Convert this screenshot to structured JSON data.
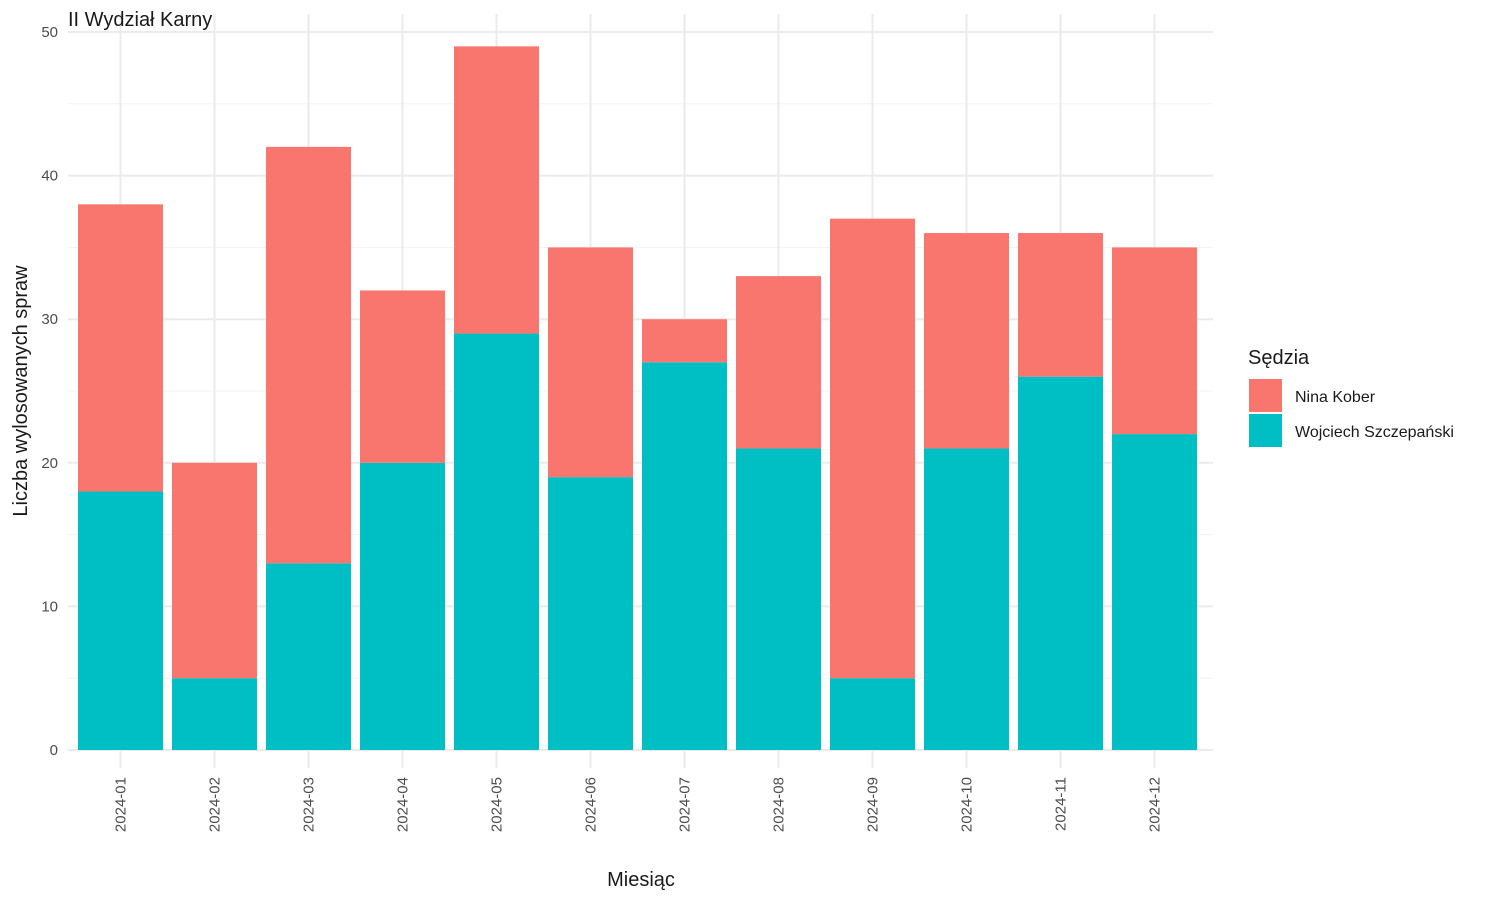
{
  "chart_data": {
    "type": "bar",
    "stacked": true,
    "title": "II Wydział Karny",
    "xlabel": "Miesiąc",
    "ylabel": "Liczba wylosowanych spraw",
    "categories": [
      "2024-01",
      "2024-02",
      "2024-03",
      "2024-04",
      "2024-05",
      "2024-06",
      "2024-07",
      "2024-08",
      "2024-09",
      "2024-10",
      "2024-11",
      "2024-12"
    ],
    "series": [
      {
        "name": "Nina Kober",
        "color": "#F8766D",
        "values": [
          20,
          15,
          29,
          12,
          20,
          16,
          3,
          12,
          32,
          15,
          10,
          13
        ]
      },
      {
        "name": "Wojciech Szczepański",
        "color": "#00BFC4",
        "values": [
          18,
          5,
          13,
          20,
          29,
          19,
          27,
          21,
          5,
          21,
          26,
          22
        ]
      }
    ],
    "stack_order_bottom_to_top": [
      "Wojciech Szczepański",
      "Nina Kober"
    ],
    "ylim": [
      0,
      50
    ],
    "yticks": [
      0,
      10,
      20,
      30,
      40,
      50
    ],
    "x_tick_rotation": "vertical",
    "grid": true,
    "legend": {
      "title": "Sędzia",
      "position": "right"
    }
  }
}
